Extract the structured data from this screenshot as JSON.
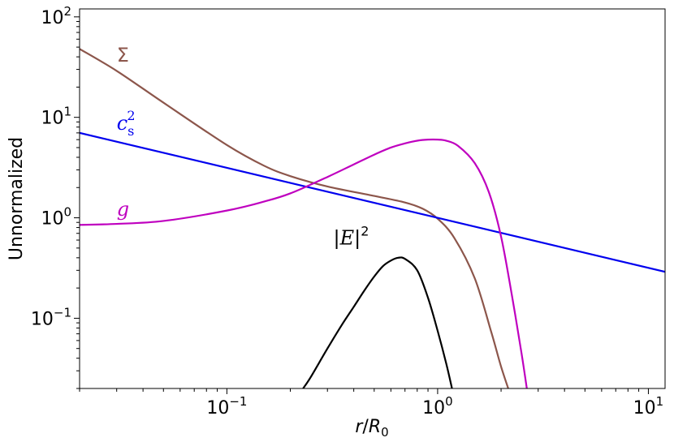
{
  "chart_data": {
    "type": "line",
    "xscale": "log",
    "yscale": "log",
    "xlim": [
      0.02,
      12
    ],
    "ylim": [
      0.02,
      120
    ],
    "xlabel": "r/R_0",
    "ylabel": "Unnormalized",
    "grid": false,
    "x_ticks": [
      {
        "value": 0.1,
        "base": "10",
        "exp": "−1"
      },
      {
        "value": 1,
        "base": "10",
        "exp": "0"
      },
      {
        "value": 10,
        "base": "10",
        "exp": "1"
      }
    ],
    "y_ticks": [
      {
        "value": 0.1,
        "base": "10",
        "exp": "−1"
      },
      {
        "value": 1,
        "base": "10",
        "exp": "0"
      },
      {
        "value": 10,
        "base": "10",
        "exp": "1"
      },
      {
        "value": 100,
        "base": "10",
        "exp": "2"
      }
    ],
    "series": [
      {
        "name": "Σ",
        "color": "#8c564b",
        "x": [
          0.02,
          0.03,
          0.05,
          0.1,
          0.15,
          0.2,
          0.3,
          0.5,
          0.7,
          0.85,
          1.0,
          1.2,
          1.5,
          1.8,
          2.0,
          2.2
        ],
        "y": [
          48,
          29,
          14,
          5.3,
          3.3,
          2.6,
          2.05,
          1.65,
          1.42,
          1.23,
          0.98,
          0.63,
          0.25,
          0.072,
          0.033,
          0.018
        ]
      },
      {
        "name": "c_s^2",
        "color": "#0000ee",
        "x": [
          0.02,
          12
        ],
        "y": [
          7.0,
          0.29
        ]
      },
      {
        "name": "g",
        "color": "#bf00bf",
        "x": [
          0.02,
          0.03,
          0.05,
          0.1,
          0.15,
          0.2,
          0.3,
          0.4,
          0.5,
          0.6,
          0.7,
          0.8,
          0.9,
          1.0,
          1.1,
          1.25,
          1.5,
          1.75,
          2.0,
          2.25,
          2.5,
          2.65
        ],
        "y": [
          0.85,
          0.87,
          0.93,
          1.18,
          1.45,
          1.75,
          2.55,
          3.4,
          4.25,
          5.0,
          5.5,
          5.85,
          6.0,
          6.0,
          5.85,
          5.2,
          3.5,
          1.8,
          0.65,
          0.17,
          0.045,
          0.02
        ]
      },
      {
        "name": "|E|^2",
        "color": "#000000",
        "x": [
          0.23,
          0.25,
          0.3,
          0.35,
          0.4,
          0.45,
          0.5,
          0.55,
          0.6,
          0.65,
          0.7,
          0.8,
          0.9,
          1.0,
          1.1,
          1.17
        ],
        "y": [
          0.02,
          0.026,
          0.05,
          0.085,
          0.13,
          0.19,
          0.26,
          0.33,
          0.375,
          0.4,
          0.39,
          0.3,
          0.16,
          0.075,
          0.035,
          0.02
        ]
      }
    ],
    "annotations": [
      {
        "series": "Σ",
        "text": "Σ",
        "x": 0.03,
        "y": 36
      },
      {
        "series": "c_s^2",
        "text": "c",
        "sub": "s",
        "sup": "2",
        "x": 0.03,
        "y": 7.5
      },
      {
        "series": "g",
        "text": "g",
        "x": 0.03,
        "y": 1.05
      },
      {
        "series": "|E|^2",
        "text": "|E|",
        "sup": "2",
        "x": 0.32,
        "y": 0.54
      }
    ]
  }
}
